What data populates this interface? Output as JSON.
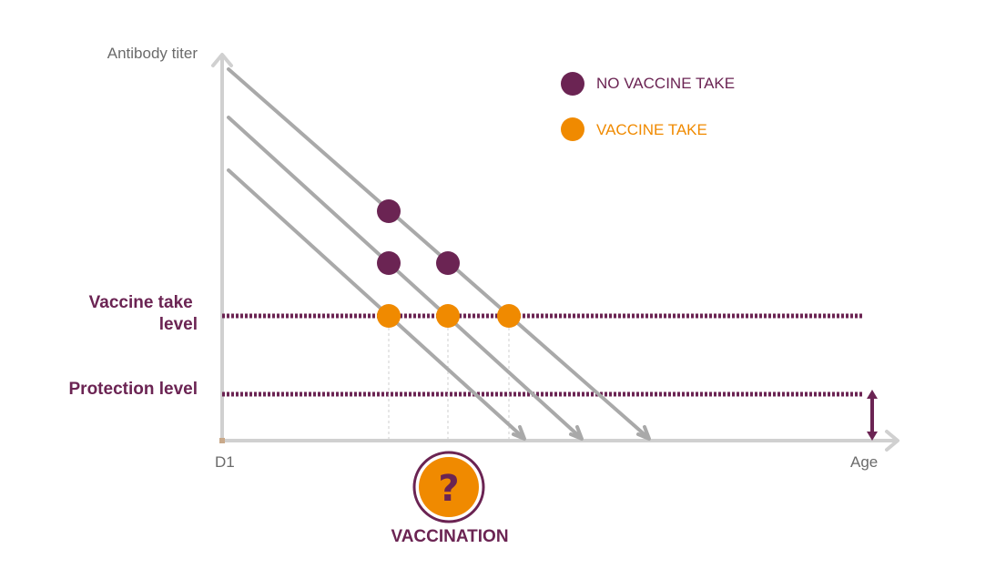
{
  "axes": {
    "y_label": "Antibody titer",
    "x_label": "Age",
    "origin_label": "D1"
  },
  "levels": {
    "vaccine_take": [
      "Vaccine take",
      "level"
    ],
    "protection": "Protection level"
  },
  "legend": {
    "no_vaccine_take": "NO VACCINE TAKE",
    "vaccine_take": "VACCINE TAKE"
  },
  "vaccination": {
    "symbol": "?",
    "label": "VACCINATION"
  },
  "colors": {
    "purple": "#6b2453",
    "orange": "#f08a00",
    "gray_line": "#a9a9a9",
    "axis": "#c8c8c8",
    "axis_text": "#6b6b6b"
  },
  "icons": {
    "protection_marker": "double-arrow-icon",
    "vaccination_badge": "question-mark-icon"
  }
}
